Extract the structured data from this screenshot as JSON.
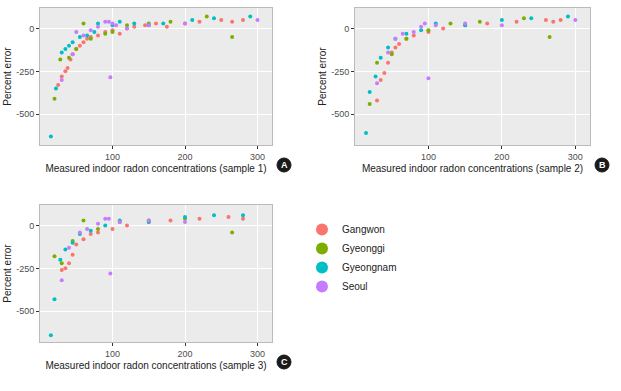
{
  "chart_data": [
    {
      "type": "scatter",
      "annotation": "A",
      "x_label": "Measured indoor radon concentrations (sample 1)",
      "y_label": "Percent error",
      "xlim": [
        0,
        320
      ],
      "ylim": [
        -680,
        120
      ],
      "xticks": [
        100,
        200,
        300
      ],
      "yticks": [
        -500,
        -250,
        0
      ],
      "grid": true,
      "series": [
        {
          "name": "Gangwon",
          "color": "#F8766D",
          "x": [
            25,
            30,
            35,
            38,
            42,
            45,
            50,
            55,
            60,
            65,
            70,
            80,
            90,
            100,
            110,
            120,
            130,
            145,
            160,
            175,
            200,
            220,
            250,
            265,
            280
          ],
          "values": [
            -330,
            -280,
            -250,
            -230,
            -180,
            -150,
            -120,
            -100,
            -80,
            -60,
            -50,
            -40,
            -20,
            -10,
            -30,
            0,
            10,
            20,
            30,
            10,
            30,
            40,
            50,
            40,
            50
          ]
        },
        {
          "name": "Gyeonggi",
          "color": "#7CAE00",
          "x": [
            20,
            28,
            40,
            50,
            60,
            70,
            90,
            100,
            120,
            150,
            180,
            230,
            265
          ],
          "values": [
            -410,
            -180,
            -170,
            -120,
            30,
            -60,
            -30,
            -20,
            20,
            30,
            40,
            70,
            -50
          ]
        },
        {
          "name": "Gyeongnam",
          "color": "#00BFC4",
          "x": [
            15,
            22,
            30,
            35,
            40,
            45,
            55,
            65,
            75,
            80,
            100,
            110,
            130,
            150,
            170,
            210,
            240,
            290
          ],
          "values": [
            -630,
            -350,
            -140,
            -120,
            -100,
            -80,
            -50,
            -40,
            -20,
            30,
            20,
            40,
            30,
            20,
            30,
            50,
            60,
            70
          ]
        },
        {
          "name": "Seoul",
          "color": "#C77CFF",
          "x": [
            30,
            45,
            50,
            60,
            70,
            80,
            90,
            95,
            97,
            100,
            105,
            120,
            150,
            200,
            300
          ],
          "values": [
            -300,
            -150,
            -20,
            -40,
            -10,
            10,
            40,
            40,
            -285,
            30,
            20,
            0,
            20,
            30,
            50
          ]
        }
      ]
    },
    {
      "type": "scatter",
      "annotation": "B",
      "x_label": "Measured indoor radon concentrations (sample 2)",
      "y_label": "Percent error",
      "xlim": [
        0,
        320
      ],
      "ylim": [
        -680,
        120
      ],
      "xticks": [
        100,
        200,
        300
      ],
      "yticks": [
        -500,
        -250,
        0
      ],
      "grid": true,
      "series": [
        {
          "name": "Gangwon",
          "color": "#F8766D",
          "x": [
            30,
            35,
            40,
            45,
            50,
            55,
            60,
            70,
            80,
            100,
            120,
            150,
            180,
            220,
            260,
            270,
            280
          ],
          "values": [
            -420,
            -300,
            -260,
            -200,
            -140,
            -110,
            -90,
            -60,
            -40,
            -20,
            0,
            20,
            30,
            40,
            50,
            40,
            50
          ]
        },
        {
          "name": "Gyeonggi",
          "color": "#7CAE00",
          "x": [
            20,
            30,
            50,
            70,
            100,
            130,
            170,
            230,
            265
          ],
          "values": [
            -440,
            -200,
            -150,
            -60,
            -10,
            30,
            40,
            60,
            -50
          ]
        },
        {
          "name": "Gyeongnam",
          "color": "#00BFC4",
          "x": [
            15,
            20,
            28,
            35,
            45,
            55,
            70,
            90,
            110,
            150,
            200,
            240,
            290
          ],
          "values": [
            -610,
            -370,
            -280,
            -170,
            -110,
            -60,
            -30,
            -10,
            30,
            20,
            50,
            60,
            70
          ]
        },
        {
          "name": "Seoul",
          "color": "#C77CFF",
          "x": [
            30,
            45,
            55,
            65,
            80,
            90,
            95,
            100,
            110,
            150,
            200,
            300
          ],
          "values": [
            -320,
            -140,
            -60,
            -30,
            -20,
            10,
            30,
            -290,
            20,
            30,
            20,
            50
          ]
        }
      ]
    },
    {
      "type": "scatter",
      "annotation": "C",
      "x_label": "Measured indoor radon concentrations (sample 3)",
      "y_label": "Percent error",
      "xlim": [
        0,
        320
      ],
      "ylim": [
        -680,
        120
      ],
      "xticks": [
        100,
        200,
        300
      ],
      "yticks": [
        -500,
        -250,
        0
      ],
      "grid": true,
      "legend": "right",
      "series": [
        {
          "name": "Gangwon",
          "color": "#F8766D",
          "x": [
            30,
            35,
            40,
            45,
            50,
            60,
            70,
            80,
            100,
            120,
            150,
            180,
            220,
            260,
            280
          ],
          "values": [
            -260,
            -250,
            -220,
            -170,
            -110,
            -80,
            -50,
            -40,
            -20,
            0,
            20,
            30,
            40,
            50,
            40
          ]
        },
        {
          "name": "Gyeonggi",
          "color": "#7CAE00",
          "x": [
            20,
            30,
            45,
            60,
            80,
            110,
            150,
            200,
            265
          ],
          "values": [
            -180,
            -220,
            -90,
            30,
            -20,
            20,
            30,
            40,
            -40
          ]
        },
        {
          "name": "Gyeongnam",
          "color": "#00BFC4",
          "x": [
            15,
            20,
            28,
            35,
            45,
            55,
            70,
            90,
            110,
            150,
            200,
            240,
            280
          ],
          "values": [
            -640,
            -430,
            -200,
            -140,
            -100,
            -50,
            -30,
            0,
            30,
            20,
            50,
            60,
            60
          ]
        },
        {
          "name": "Seoul",
          "color": "#C77CFF",
          "x": [
            30,
            40,
            55,
            65,
            80,
            90,
            95,
            97,
            110,
            150,
            200
          ],
          "values": [
            -320,
            -130,
            -40,
            -20,
            10,
            40,
            40,
            -280,
            20,
            30,
            20
          ]
        }
      ]
    }
  ]
}
